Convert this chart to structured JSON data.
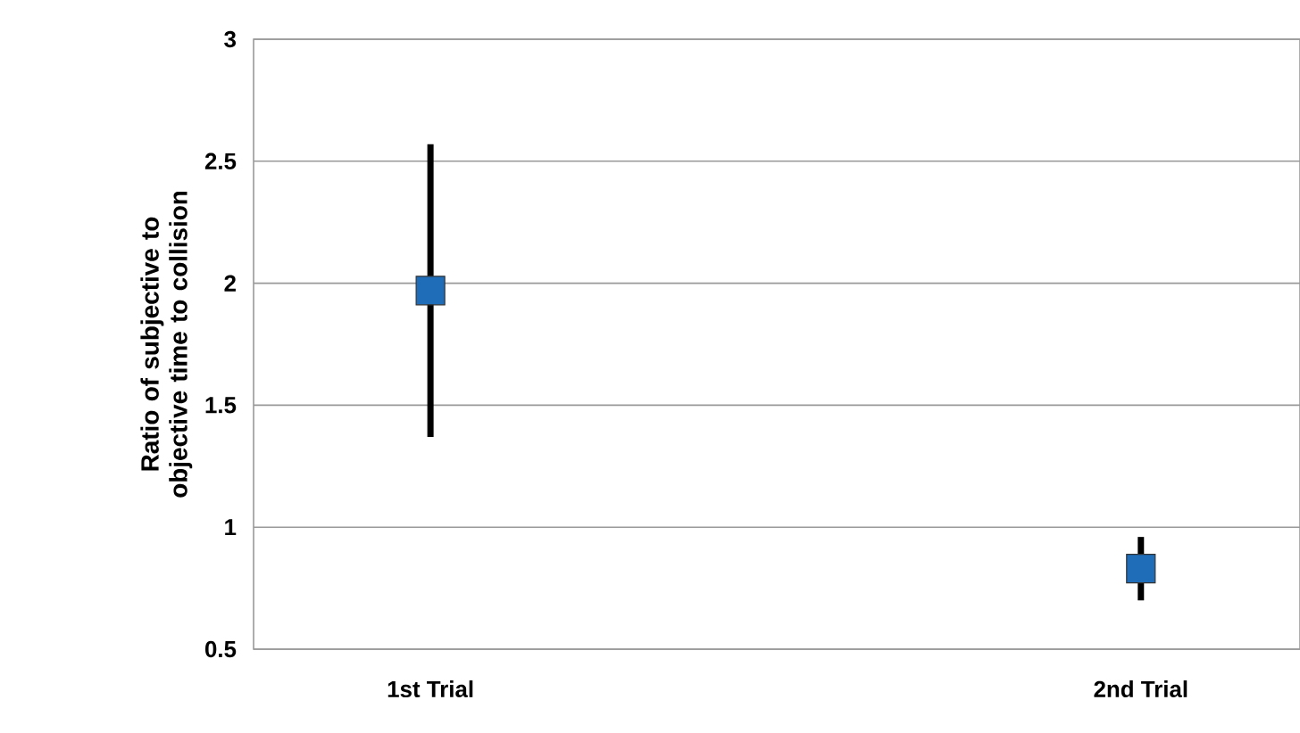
{
  "chart_data": {
    "type": "scatter",
    "ylabel": "Ratio of subjective to objective time to collision",
    "categories": [
      "1st Trial",
      "2nd Trial"
    ],
    "series": [
      {
        "color": "#1f6cb8",
        "values": [
          1.97,
          0.83
        ],
        "errors": [
          [
            1.37,
            2.57
          ],
          [
            0.7,
            0.96
          ]
        ]
      }
    ],
    "ylim": [
      0.5,
      3
    ],
    "yticks": [
      0.5,
      1,
      1.5,
      2,
      2.5,
      3
    ],
    "grid": "y",
    "marker": "square"
  }
}
